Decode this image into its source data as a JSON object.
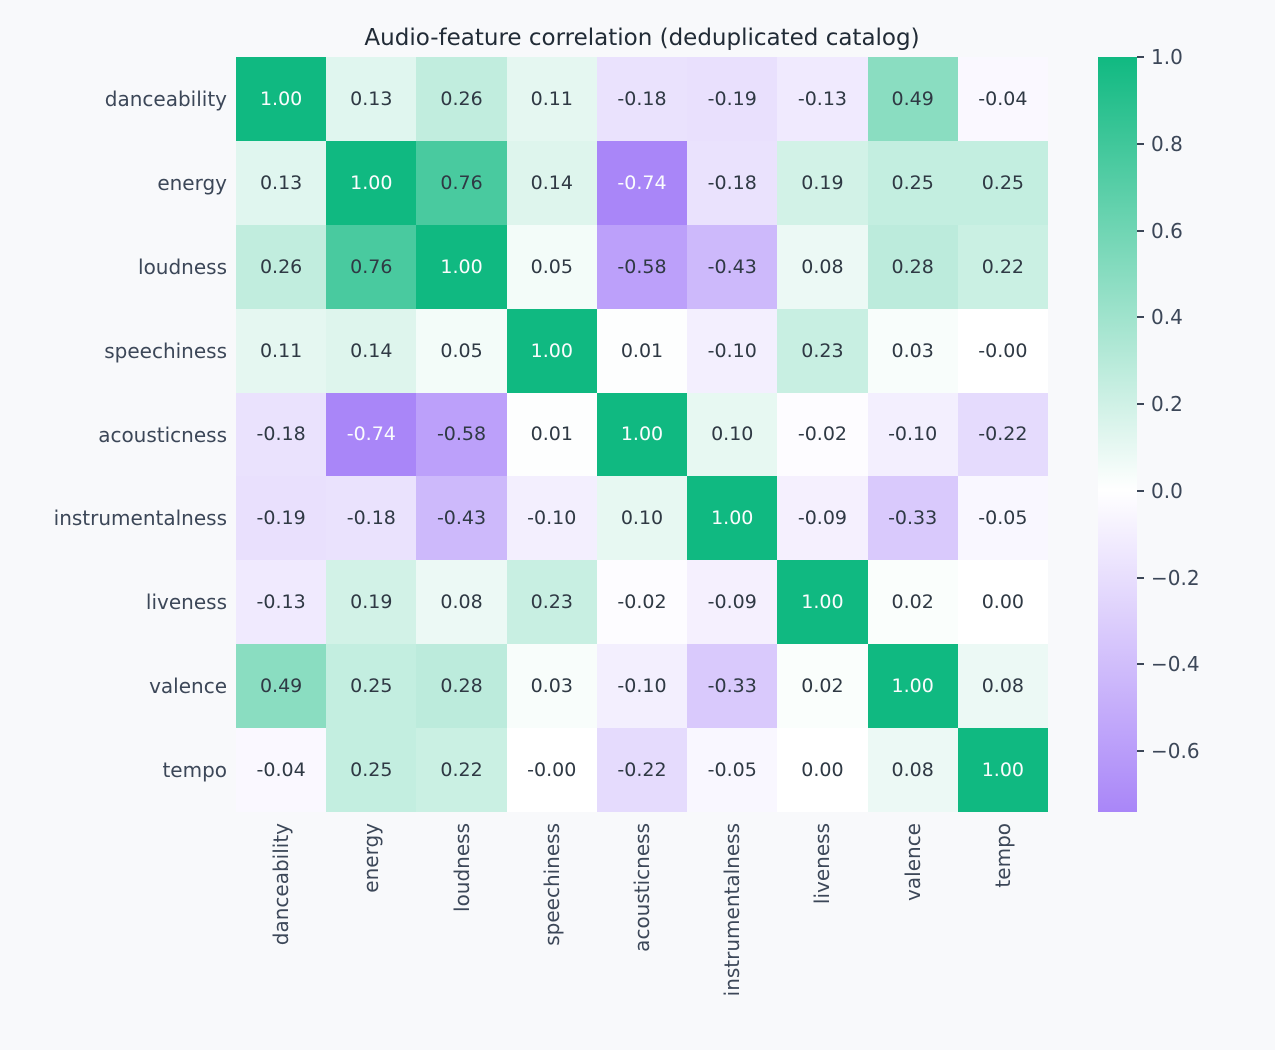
{
  "title": "Audio-feature correlation (deduplicated catalog)",
  "chart_data": {
    "type": "heatmap",
    "title": "Audio-feature correlation (deduplicated catalog)",
    "x_categories": [
      "danceability",
      "energy",
      "loudness",
      "speechiness",
      "acousticness",
      "instrumentalness",
      "liveness",
      "valence",
      "tempo"
    ],
    "y_categories": [
      "danceability",
      "energy",
      "loudness",
      "speechiness",
      "acousticness",
      "instrumentalness",
      "liveness",
      "valence",
      "tempo"
    ],
    "values": [
      [
        1.0,
        0.13,
        0.26,
        0.11,
        -0.18,
        -0.19,
        -0.13,
        0.49,
        -0.04
      ],
      [
        0.13,
        1.0,
        0.76,
        0.14,
        -0.74,
        -0.18,
        0.19,
        0.25,
        0.25
      ],
      [
        0.26,
        0.76,
        1.0,
        0.05,
        -0.58,
        -0.43,
        0.08,
        0.28,
        0.22
      ],
      [
        0.11,
        0.14,
        0.05,
        1.0,
        0.01,
        -0.1,
        0.23,
        0.03,
        -0.0
      ],
      [
        -0.18,
        -0.74,
        -0.58,
        0.01,
        1.0,
        0.1,
        -0.02,
        -0.1,
        -0.22
      ],
      [
        -0.19,
        -0.18,
        -0.43,
        -0.1,
        0.1,
        1.0,
        -0.09,
        -0.33,
        -0.05
      ],
      [
        -0.13,
        0.19,
        0.08,
        0.23,
        -0.02,
        -0.09,
        1.0,
        0.02,
        0.0
      ],
      [
        0.49,
        0.25,
        0.28,
        0.03,
        -0.1,
        -0.33,
        0.02,
        1.0,
        0.08
      ],
      [
        -0.04,
        0.25,
        0.22,
        -0.0,
        -0.22,
        -0.05,
        0.0,
        0.08,
        1.0
      ]
    ],
    "value_labels": [
      [
        "1.00",
        "0.13",
        "0.26",
        "0.11",
        "-0.18",
        "-0.19",
        "-0.13",
        "0.49",
        "-0.04"
      ],
      [
        "0.13",
        "1.00",
        "0.76",
        "0.14",
        "-0.74",
        "-0.18",
        "0.19",
        "0.25",
        "0.25"
      ],
      [
        "0.26",
        "0.76",
        "1.00",
        "0.05",
        "-0.58",
        "-0.43",
        "0.08",
        "0.28",
        "0.22"
      ],
      [
        "0.11",
        "0.14",
        "0.05",
        "1.00",
        "0.01",
        "-0.10",
        "0.23",
        "0.03",
        "-0.00"
      ],
      [
        "-0.18",
        "-0.74",
        "-0.58",
        "0.01",
        "1.00",
        "0.10",
        "-0.02",
        "-0.10",
        "-0.22"
      ],
      [
        "-0.19",
        "-0.18",
        "-0.43",
        "-0.10",
        "0.10",
        "1.00",
        "-0.09",
        "-0.33",
        "-0.05"
      ],
      [
        "-0.13",
        "0.19",
        "0.08",
        "0.23",
        "-0.02",
        "-0.09",
        "1.00",
        "0.02",
        "0.00"
      ],
      [
        "0.49",
        "0.25",
        "0.28",
        "0.03",
        "-0.10",
        "-0.33",
        "0.02",
        "1.00",
        "0.08"
      ],
      [
        "-0.04",
        "0.25",
        "0.22",
        "-0.00",
        "-0.22",
        "-0.05",
        "0.00",
        "0.08",
        "1.00"
      ]
    ],
    "colorbar": {
      "position": "right",
      "vmin": -0.74,
      "vmax": 1.0,
      "center": 0.0,
      "tick_labels": [
        "1.0",
        "0.8",
        "0.6",
        "0.4",
        "0.2",
        "0.0",
        "−0.2",
        "−0.4",
        "−0.6"
      ],
      "tick_values": [
        1.0,
        0.8,
        0.6,
        0.4,
        0.2,
        0.0,
        -0.2,
        -0.4,
        -0.6
      ]
    },
    "colors": {
      "positive_max": "#10b981",
      "negative_full": "#8b5cf6",
      "center": "#ffffff",
      "background": "#f8f9fb",
      "title_text": "#212b36",
      "axis_text": "#3c4758",
      "annotation_dark": "#2f3944",
      "annotation_light": "#fafcfd"
    },
    "grid": false,
    "annotated": true
  }
}
